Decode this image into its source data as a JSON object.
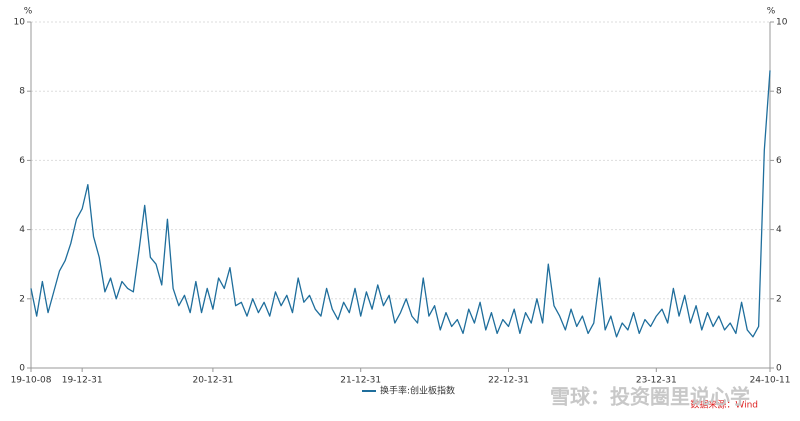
{
  "chart_data": {
    "type": "line",
    "y_unit": "%",
    "categories": [
      "19-10-08",
      null,
      null,
      null,
      null,
      null,
      null,
      null,
      null,
      "19-12-31",
      null,
      null,
      null,
      null,
      null,
      null,
      null,
      null,
      null,
      null,
      null,
      null,
      null,
      null,
      null,
      null,
      null,
      null,
      null,
      null,
      null,
      null,
      "20-12-31",
      null,
      null,
      null,
      null,
      null,
      null,
      null,
      null,
      null,
      null,
      null,
      null,
      null,
      null,
      null,
      null,
      null,
      null,
      null,
      null,
      null,
      null,
      null,
      null,
      null,
      "21-12-31",
      null,
      null,
      null,
      null,
      null,
      null,
      null,
      null,
      null,
      null,
      null,
      null,
      null,
      null,
      null,
      null,
      null,
      null,
      null,
      null,
      null,
      null,
      null,
      null,
      null,
      "22-12-31",
      null,
      null,
      null,
      null,
      null,
      null,
      null,
      null,
      null,
      null,
      null,
      null,
      null,
      null,
      null,
      null,
      null,
      null,
      null,
      null,
      null,
      null,
      null,
      null,
      null,
      "23-12-31",
      null,
      null,
      null,
      null,
      null,
      null,
      null,
      null,
      null,
      null,
      null,
      null,
      null,
      null,
      null,
      null,
      null,
      null,
      null,
      "24-10-11"
    ],
    "series": [
      {
        "name": "换手率:创业板指数",
        "color": "#1f6e9c",
        "values": [
          2.3,
          1.5,
          2.5,
          1.6,
          2.2,
          2.8,
          3.1,
          3.6,
          4.3,
          4.6,
          5.3,
          3.8,
          3.2,
          2.2,
          2.6,
          2.0,
          2.5,
          2.3,
          2.2,
          3.4,
          4.7,
          3.2,
          3.0,
          2.4,
          4.3,
          2.3,
          1.8,
          2.1,
          1.6,
          2.5,
          1.6,
          2.3,
          1.7,
          2.6,
          2.3,
          2.9,
          1.8,
          1.9,
          1.5,
          2.0,
          1.6,
          1.9,
          1.5,
          2.2,
          1.8,
          2.1,
          1.6,
          2.6,
          1.9,
          2.1,
          1.7,
          1.5,
          2.3,
          1.7,
          1.4,
          1.9,
          1.6,
          2.3,
          1.5,
          2.2,
          1.7,
          2.4,
          1.8,
          2.1,
          1.3,
          1.6,
          2.0,
          1.5,
          1.3,
          2.6,
          1.5,
          1.8,
          1.1,
          1.6,
          1.2,
          1.4,
          1.0,
          1.7,
          1.3,
          1.9,
          1.1,
          1.6,
          1.0,
          1.4,
          1.2,
          1.7,
          1.0,
          1.6,
          1.3,
          2.0,
          1.3,
          3.0,
          1.8,
          1.5,
          1.1,
          1.7,
          1.2,
          1.5,
          1.0,
          1.3,
          2.6,
          1.1,
          1.5,
          0.9,
          1.3,
          1.1,
          1.6,
          1.0,
          1.4,
          1.2,
          1.5,
          1.7,
          1.3,
          2.3,
          1.5,
          2.1,
          1.3,
          1.8,
          1.1,
          1.6,
          1.2,
          1.5,
          1.1,
          1.3,
          1.0,
          1.9,
          1.1,
          0.9,
          1.2,
          6.3,
          8.6
        ]
      }
    ],
    "ylim": [
      0,
      10
    ],
    "yticks": [
      0,
      2,
      4,
      6,
      8,
      10
    ],
    "grid": true,
    "source": "数据来源：Wind",
    "watermark": "雪球：投资圈里说心学"
  }
}
